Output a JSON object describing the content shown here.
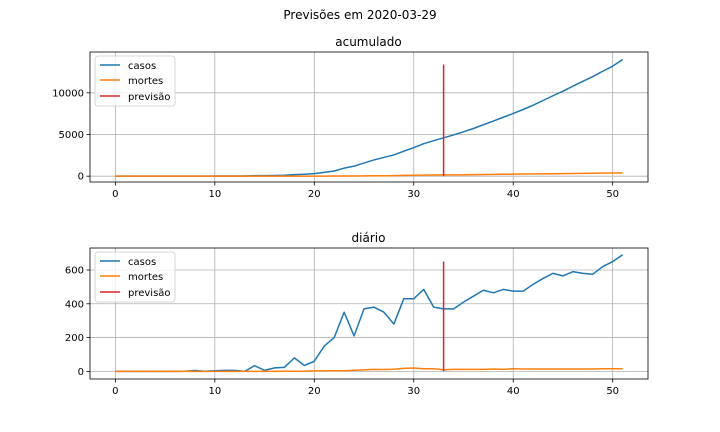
{
  "figure": {
    "suptitle": "Previsões em 2020-03-29",
    "colors": {
      "casos": "#1f77b4",
      "mortes": "#ff7f0e",
      "previsao": "#d62728",
      "grid": "#b0b0b0"
    }
  },
  "chart_data": [
    {
      "type": "line",
      "title": "acumulado",
      "xlabel": "",
      "ylabel": "",
      "xlim": [
        -2.55,
        53.55
      ],
      "ylim": [
        -700,
        14900
      ],
      "xticks": [
        0,
        10,
        20,
        30,
        40,
        50
      ],
      "yticks": [
        0,
        5000,
        10000
      ],
      "grid": true,
      "legend": "top-left",
      "x": [
        0,
        1,
        2,
        3,
        4,
        5,
        6,
        7,
        8,
        9,
        10,
        11,
        12,
        13,
        14,
        15,
        16,
        17,
        18,
        19,
        20,
        21,
        22,
        23,
        24,
        25,
        26,
        27,
        28,
        29,
        30,
        31,
        32,
        33,
        34,
        35,
        36,
        37,
        38,
        39,
        40,
        41,
        42,
        43,
        44,
        45,
        46,
        47,
        48,
        49,
        50,
        51
      ],
      "series": [
        {
          "name": "casos",
          "color": "#1f77b4",
          "values": [
            1,
            1,
            1,
            2,
            2,
            2,
            2,
            3,
            8,
            9,
            13,
            19,
            25,
            25,
            59,
            65,
            86,
            110,
            190,
            225,
            300,
            450,
            620,
            960,
            1200,
            1570,
            1950,
            2250,
            2550,
            3000,
            3420,
            3900,
            4260,
            4600,
            4950,
            5320,
            5720,
            6170,
            6610,
            7070,
            7530,
            8000,
            8520,
            9080,
            9650,
            10200,
            10800,
            11380,
            11950,
            12590,
            13200,
            14000
          ]
        },
        {
          "name": "mortes",
          "color": "#ff7f0e",
          "values": [
            0,
            0,
            0,
            0,
            0,
            0,
            0,
            0,
            0,
            0,
            0,
            0,
            0,
            0,
            0,
            0,
            0,
            1,
            2,
            3,
            6,
            10,
            14,
            18,
            25,
            34,
            46,
            57,
            70,
            88,
            108,
            124,
            140,
            150,
            162,
            174,
            186,
            198,
            212,
            224,
            240,
            254,
            268,
            282,
            296,
            310,
            324,
            338,
            352,
            368,
            384,
            400
          ]
        },
        {
          "name": "previsão",
          "color": "#d62728",
          "type": "vline",
          "x_value": 33,
          "y_range": [
            0,
            13400
          ]
        }
      ]
    },
    {
      "type": "line",
      "title": "diário",
      "xlabel": "",
      "ylabel": "",
      "xlim": [
        -2.55,
        53.55
      ],
      "ylim": [
        -45,
        730
      ],
      "xticks": [
        0,
        10,
        20,
        30,
        40,
        50
      ],
      "yticks": [
        0,
        200,
        400,
        600
      ],
      "grid": true,
      "legend": "top-left",
      "x": [
        0,
        1,
        2,
        3,
        4,
        5,
        6,
        7,
        8,
        9,
        10,
        11,
        12,
        13,
        14,
        15,
        16,
        17,
        18,
        19,
        20,
        21,
        22,
        23,
        24,
        25,
        26,
        27,
        28,
        29,
        30,
        31,
        32,
        33,
        34,
        35,
        36,
        37,
        38,
        39,
        40,
        41,
        42,
        43,
        44,
        45,
        46,
        47,
        48,
        49,
        50,
        51
      ],
      "series": [
        {
          "name": "casos",
          "color": "#1f77b4",
          "values": [
            0,
            0,
            0,
            1,
            0,
            0,
            0,
            1,
            5,
            1,
            4,
            6,
            6,
            0,
            34,
            6,
            21,
            24,
            80,
            35,
            60,
            150,
            200,
            350,
            210,
            370,
            380,
            350,
            280,
            430,
            430,
            485,
            380,
            370,
            370,
            410,
            445,
            480,
            465,
            485,
            475,
            475,
            515,
            550,
            580,
            565,
            590,
            580,
            575,
            620,
            650,
            690
          ]
        },
        {
          "name": "mortes",
          "color": "#ff7f0e",
          "values": [
            0,
            0,
            0,
            0,
            0,
            0,
            0,
            0,
            0,
            0,
            0,
            0,
            0,
            0,
            0,
            0,
            0,
            1,
            1,
            1,
            3,
            4,
            4,
            4,
            7,
            9,
            12,
            11,
            13,
            18,
            20,
            16,
            16,
            10,
            12,
            12,
            12,
            12,
            14,
            12,
            16,
            14,
            14,
            14,
            14,
            14,
            14,
            14,
            14,
            16,
            16,
            16
          ]
        },
        {
          "name": "previsão",
          "color": "#d62728",
          "type": "vline",
          "x_value": 33,
          "y_range": [
            0,
            650
          ]
        }
      ]
    }
  ]
}
